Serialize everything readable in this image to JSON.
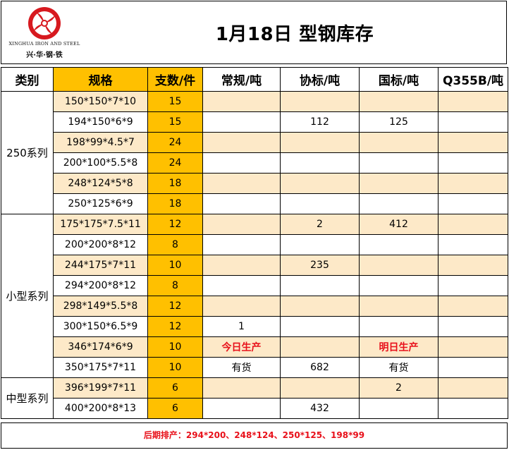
{
  "logo": {
    "en": "XINGHUA IRON AND STEEL",
    "cn": "兴·华·钢·铁"
  },
  "title": "1月18日 型钢库存",
  "headers": [
    "类别",
    "规格",
    "支数/件",
    "常规/吨",
    "协标/吨",
    "国标/吨",
    "Q355B/吨"
  ],
  "colors": {
    "accent": "#ffc000",
    "tint": "#fde9c8",
    "red": "#e8101a",
    "logo_red": "#d7191f"
  },
  "groups": [
    {
      "category": "250系列",
      "rows": [
        {
          "spec": "150*150*7*10",
          "qty": "15",
          "regular": "",
          "association": "",
          "national": "",
          "q355b": ""
        },
        {
          "spec": "194*150*6*9",
          "qty": "15",
          "regular": "",
          "association": "112",
          "national": "125",
          "q355b": ""
        },
        {
          "spec": "198*99*4.5*7",
          "qty": "24",
          "regular": "",
          "association": "",
          "national": "",
          "q355b": ""
        },
        {
          "spec": "200*100*5.5*8",
          "qty": "24",
          "regular": "",
          "association": "",
          "national": "",
          "q355b": ""
        },
        {
          "spec": "248*124*5*8",
          "qty": "18",
          "regular": "",
          "association": "",
          "national": "",
          "q355b": ""
        },
        {
          "spec": "250*125*6*9",
          "qty": "18",
          "regular": "",
          "association": "",
          "national": "",
          "q355b": ""
        }
      ]
    },
    {
      "category": "小型系列",
      "rows": [
        {
          "spec": "175*175*7.5*11",
          "qty": "12",
          "regular": "",
          "association": "2",
          "national": "412",
          "q355b": ""
        },
        {
          "spec": "200*200*8*12",
          "qty": "8",
          "regular": "",
          "association": "",
          "national": "",
          "q355b": ""
        },
        {
          "spec": "244*175*7*11",
          "qty": "10",
          "regular": "",
          "association": "235",
          "national": "",
          "q355b": ""
        },
        {
          "spec": "294*200*8*12",
          "qty": "8",
          "regular": "",
          "association": "",
          "national": "",
          "q355b": ""
        },
        {
          "spec": "298*149*5.5*8",
          "qty": "12",
          "regular": "",
          "association": "",
          "national": "",
          "q355b": ""
        },
        {
          "spec": "300*150*6.5*9",
          "qty": "12",
          "regular": "1",
          "association": "",
          "national": "",
          "q355b": ""
        },
        {
          "spec": "346*174*6*9",
          "qty": "10",
          "regular": "今日生产",
          "association": "",
          "national": "明日生产",
          "q355b": ""
        },
        {
          "spec": "350*175*7*11",
          "qty": "10",
          "regular": "有货",
          "association": "682",
          "national": "有货",
          "q355b": ""
        }
      ]
    },
    {
      "category": "中型系列",
      "rows": [
        {
          "spec": "396*199*7*11",
          "qty": "6",
          "regular": "",
          "association": "",
          "national": "2",
          "q355b": ""
        },
        {
          "spec": "400*200*8*13",
          "qty": "6",
          "regular": "",
          "association": "432",
          "national": "",
          "q355b": ""
        }
      ]
    }
  ],
  "footer": "后期排产：294*200、248*124、250*125、198*99"
}
